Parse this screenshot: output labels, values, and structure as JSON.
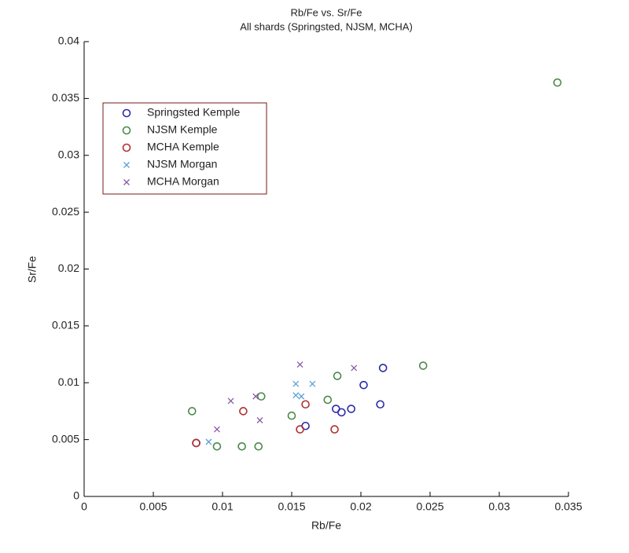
{
  "chart_data": {
    "type": "scatter",
    "title": "Rb/Fe vs. Sr/Fe",
    "subtitle": "All shards (Springsted, NJSM, MCHA)",
    "x_label": "Rb/Fe",
    "y_label": "Sr/Fe",
    "xlim": [
      0,
      0.035
    ],
    "ylim": [
      0,
      0.04
    ],
    "xticks": [
      0,
      0.005,
      0.01,
      0.015,
      0.02,
      0.025,
      0.03,
      0.035
    ],
    "yticks": [
      0,
      0.005,
      0.01,
      0.015,
      0.02,
      0.025,
      0.03,
      0.035,
      0.04
    ],
    "legend": "upper left",
    "series": [
      {
        "name": "Springsted Kemple",
        "color": "#2b2ba8",
        "marker": "circle",
        "x": [
          0.0081,
          0.016,
          0.0182,
          0.0186,
          0.0193,
          0.0202,
          0.0216,
          0.0214
        ],
        "y": [
          0.0047,
          0.0062,
          0.0077,
          0.0074,
          0.0077,
          0.0098,
          0.0113,
          0.0081
        ]
      },
      {
        "name": "NJSM Kemple",
        "color": "#4a8a4a",
        "marker": "circle",
        "x": [
          0.0078,
          0.0096,
          0.0114,
          0.0126,
          0.0128,
          0.015,
          0.0176,
          0.0183,
          0.0245,
          0.0342
        ],
        "y": [
          0.0075,
          0.0044,
          0.0044,
          0.0044,
          0.0088,
          0.0071,
          0.0085,
          0.0106,
          0.0115,
          0.0364
        ]
      },
      {
        "name": "MCHA Kemple",
        "color": "#b03030",
        "marker": "circle",
        "x": [
          0.0115,
          0.0156,
          0.016,
          0.0181,
          0.0081
        ],
        "y": [
          0.0075,
          0.0059,
          0.0081,
          0.0059,
          0.0047
        ]
      },
      {
        "name": "NJSM Morgan",
        "color": "#5aa0d8",
        "marker": "x",
        "x": [
          0.0153,
          0.0153,
          0.0157,
          0.0165,
          0.009
        ],
        "y": [
          0.0099,
          0.0089,
          0.0088,
          0.0099,
          0.0048
        ]
      },
      {
        "name": "MCHA Morgan",
        "color": "#8a5aa8",
        "marker": "x",
        "x": [
          0.0096,
          0.0106,
          0.0124,
          0.0127,
          0.0156,
          0.0195
        ],
        "y": [
          0.0059,
          0.0084,
          0.0088,
          0.0067,
          0.0116,
          0.0113
        ]
      }
    ]
  }
}
